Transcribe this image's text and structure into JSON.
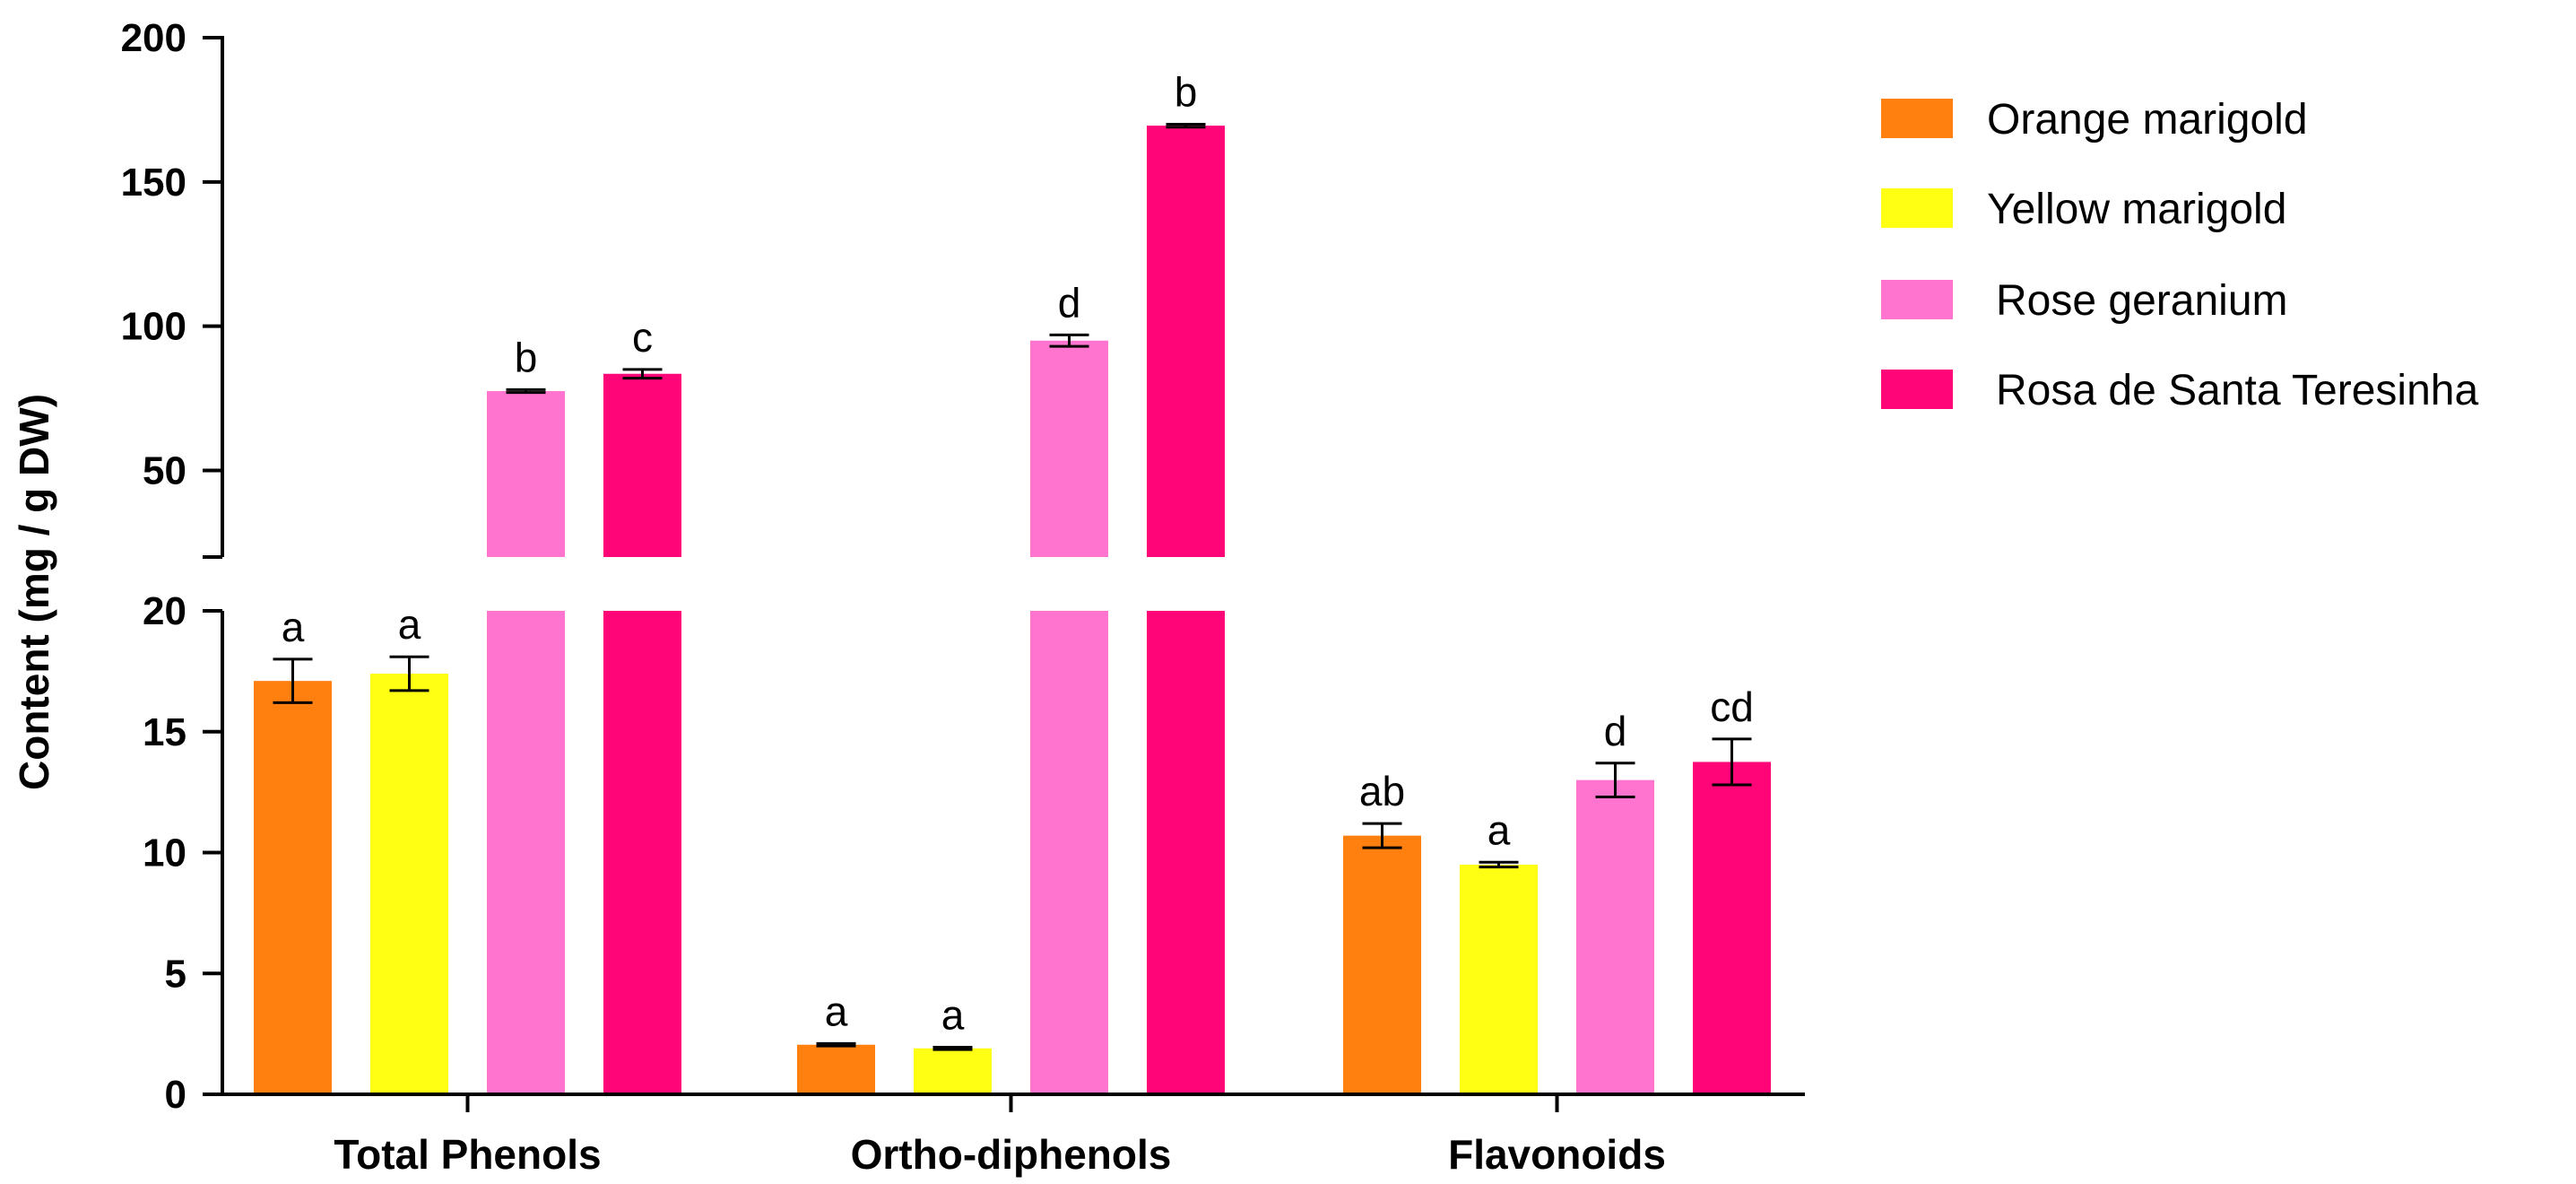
{
  "chart_data": {
    "type": "bar",
    "ylabel": "Content (mg / g DW)",
    "xlabel": "",
    "y_axis_segments": [
      {
        "ylim": [
          0,
          20
        ],
        "ticks": [
          0,
          5,
          10,
          15,
          20
        ]
      },
      {
        "ylim": [
          20,
          200
        ],
        "ticks": [
          50,
          100,
          150,
          200
        ]
      }
    ],
    "categories": [
      "Total Phenols",
      "Ortho-diphenols",
      "Flavonoids"
    ],
    "series": [
      {
        "name": "Orange marigold",
        "color": "#FF7F0F",
        "values": [
          17.1,
          2.05,
          10.7
        ],
        "errors": [
          0.9,
          0.05,
          0.5
        ],
        "letters": [
          "a",
          "a",
          "ab"
        ]
      },
      {
        "name": "Yellow marigold",
        "color": "#FFFF14",
        "values": [
          17.4,
          1.9,
          9.5
        ],
        "errors": [
          0.7,
          0.05,
          0.1
        ],
        "letters": [
          "a",
          "a",
          "a"
        ]
      },
      {
        "name": "Rose geranium",
        "color": "#FF74CF",
        "values": [
          77.5,
          95.0,
          13.0
        ],
        "errors": [
          0.5,
          2.0,
          0.7
        ],
        "letters": [
          "b",
          "d",
          "d"
        ]
      },
      {
        "name": "Rosa de Santa Teresinha",
        "color": "#FF0578",
        "values": [
          83.5,
          169.5,
          13.75
        ],
        "errors": [
          1.5,
          0.5,
          0.95
        ],
        "letters": [
          "c",
          "b",
          "cd"
        ]
      }
    ],
    "legend_position": "right"
  }
}
